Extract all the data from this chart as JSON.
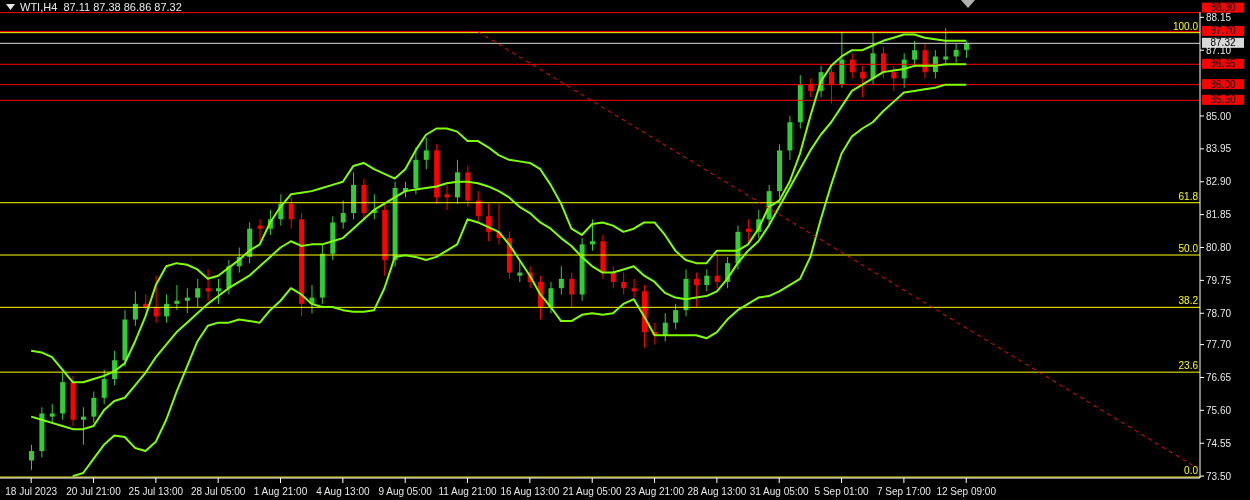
{
  "chart_data": {
    "type": "candlestick",
    "title": "WTI,H4  87.11 87.38 86.86 87.32",
    "categories": [
      "18 Jul 2023",
      null,
      null,
      null,
      null,
      null,
      "20 Jul 21:00",
      null,
      null,
      null,
      null,
      null,
      "25 Jul 13:00",
      null,
      null,
      null,
      null,
      null,
      "28 Jul 05:00",
      null,
      null,
      null,
      null,
      null,
      "1 Aug 21:00",
      null,
      null,
      null,
      null,
      null,
      "4 Aug 13:00",
      null,
      null,
      null,
      null,
      null,
      "9 Aug 05:00",
      null,
      null,
      null,
      null,
      null,
      "11 Aug 21:00",
      null,
      null,
      null,
      null,
      null,
      "16 Aug 13:00",
      null,
      null,
      null,
      null,
      null,
      "21 Aug 05:00",
      null,
      null,
      null,
      null,
      null,
      "23 Aug 21:00",
      null,
      null,
      null,
      null,
      null,
      "28 Aug 13:00",
      null,
      null,
      null,
      null,
      null,
      "31 Aug 05:00",
      null,
      null,
      null,
      null,
      null,
      "5 Sep 01:00",
      null,
      null,
      null,
      null,
      null,
      "7 Sep 17:00",
      null,
      null,
      null,
      null,
      null,
      "12 Sep 09:00",
      null,
      null,
      null,
      null,
      null,
      null,
      null,
      null,
      null,
      null,
      null,
      null,
      null,
      null,
      null,
      null,
      null,
      null,
      null,
      null,
      null,
      null
    ],
    "ohlc": [
      [
        74.0,
        74.5,
        73.7,
        74.3
      ],
      [
        74.3,
        75.7,
        74.1,
        75.5
      ],
      [
        75.4,
        75.8,
        75.2,
        75.5
      ],
      [
        75.5,
        76.8,
        75.3,
        76.5
      ],
      [
        76.5,
        76.7,
        75.1,
        75.3
      ],
      [
        75.3,
        75.7,
        74.5,
        75.4
      ],
      [
        75.4,
        76.2,
        75.2,
        76.0
      ],
      [
        76.0,
        76.9,
        75.8,
        76.6
      ],
      [
        76.6,
        77.5,
        76.4,
        77.2
      ],
      [
        77.2,
        78.8,
        77.0,
        78.5
      ],
      [
        78.5,
        79.4,
        78.3,
        79.0
      ],
      [
        79.0,
        79.3,
        78.8,
        78.9
      ],
      [
        78.9,
        79.9,
        78.4,
        78.6
      ],
      [
        78.6,
        79.3,
        78.4,
        79.0
      ],
      [
        79.0,
        79.6,
        78.8,
        79.1
      ],
      [
        79.1,
        79.5,
        78.7,
        79.2
      ],
      [
        79.2,
        79.8,
        78.9,
        79.5
      ],
      [
        79.5,
        80.1,
        79.1,
        79.4
      ],
      [
        79.4,
        79.8,
        79.0,
        79.5
      ],
      [
        79.5,
        80.4,
        79.3,
        80.2
      ],
      [
        80.2,
        80.8,
        80.0,
        80.5
      ],
      [
        80.5,
        81.6,
        80.3,
        81.4
      ],
      [
        81.5,
        81.7,
        81.0,
        81.4
      ],
      [
        81.4,
        82.0,
        81.2,
        81.7
      ],
      [
        81.7,
        82.5,
        81.5,
        82.2
      ],
      [
        82.2,
        82.4,
        81.4,
        81.7
      ],
      [
        81.7,
        81.9,
        78.6,
        79.0
      ],
      [
        79.0,
        79.6,
        78.7,
        79.2
      ],
      [
        79.2,
        80.9,
        79.0,
        80.6
      ],
      [
        80.6,
        81.8,
        80.4,
        81.6
      ],
      [
        81.6,
        82.3,
        81.4,
        81.9
      ],
      [
        81.9,
        83.2,
        81.7,
        82.8
      ],
      [
        82.8,
        83.0,
        81.7,
        81.9
      ],
      [
        81.9,
        82.5,
        81.7,
        82.0
      ],
      [
        82.0,
        82.2,
        79.9,
        80.4
      ],
      [
        80.4,
        82.9,
        80.2,
        82.7
      ],
      [
        82.6,
        82.9,
        82.4,
        82.7
      ],
      [
        82.7,
        84.0,
        82.5,
        83.6
      ],
      [
        83.6,
        84.3,
        83.3,
        83.9
      ],
      [
        83.9,
        84.1,
        82.2,
        82.4
      ],
      [
        82.5,
        82.8,
        82.0,
        82.4
      ],
      [
        82.4,
        83.6,
        82.2,
        83.2
      ],
      [
        83.2,
        83.4,
        82.1,
        82.3
      ],
      [
        82.3,
        82.6,
        81.6,
        81.8
      ],
      [
        81.8,
        82.2,
        81.0,
        81.3
      ],
      [
        81.3,
        82.2,
        80.9,
        81.1
      ],
      [
        81.1,
        81.3,
        79.8,
        80.0
      ],
      [
        79.9,
        80.4,
        79.7,
        80.0
      ],
      [
        80.0,
        80.2,
        79.5,
        79.7
      ],
      [
        79.7,
        79.9,
        78.5,
        78.9
      ],
      [
        78.9,
        79.7,
        78.7,
        79.5
      ],
      [
        79.5,
        80.2,
        79.3,
        79.8
      ],
      [
        79.8,
        80.0,
        78.9,
        79.3
      ],
      [
        79.3,
        81.1,
        79.1,
        80.9
      ],
      [
        80.9,
        81.7,
        80.7,
        81.0
      ],
      [
        81.0,
        81.2,
        79.8,
        80.0
      ],
      [
        80.0,
        80.2,
        79.5,
        79.7
      ],
      [
        79.7,
        80.0,
        79.3,
        79.5
      ],
      [
        79.5,
        79.8,
        79.2,
        79.4
      ],
      [
        79.4,
        79.6,
        77.6,
        78.1
      ],
      [
        78.1,
        78.4,
        77.7,
        78.0
      ],
      [
        78.0,
        78.7,
        77.8,
        78.4
      ],
      [
        78.4,
        79.0,
        78.2,
        78.8
      ],
      [
        78.8,
        80.1,
        78.6,
        79.8
      ],
      [
        79.8,
        80.0,
        78.9,
        79.6
      ],
      [
        79.6,
        80.1,
        79.4,
        79.9
      ],
      [
        79.9,
        80.6,
        79.5,
        79.7
      ],
      [
        79.7,
        80.5,
        79.5,
        80.3
      ],
      [
        80.3,
        81.5,
        80.1,
        81.3
      ],
      [
        81.4,
        81.7,
        80.9,
        81.3
      ],
      [
        81.3,
        82.0,
        81.1,
        81.7
      ],
      [
        81.7,
        82.8,
        81.5,
        82.6
      ],
      [
        82.6,
        84.1,
        82.4,
        83.9
      ],
      [
        83.9,
        85.0,
        83.6,
        84.8
      ],
      [
        84.8,
        86.3,
        84.6,
        86.0
      ],
      [
        86.0,
        86.2,
        85.6,
        85.8
      ],
      [
        85.8,
        86.6,
        85.6,
        86.4
      ],
      [
        86.4,
        86.5,
        85.4,
        86.0
      ],
      [
        86.0,
        87.7,
        85.9,
        86.8
      ],
      [
        86.8,
        87.0,
        86.2,
        86.4
      ],
      [
        86.4,
        86.6,
        85.6,
        86.2
      ],
      [
        86.2,
        87.7,
        86.0,
        87.0
      ],
      [
        87.0,
        87.2,
        86.2,
        86.4
      ],
      [
        86.4,
        86.6,
        85.8,
        86.2
      ],
      [
        86.2,
        87.0,
        85.9,
        86.8
      ],
      [
        86.8,
        87.4,
        86.6,
        87.1
      ],
      [
        87.1,
        87.3,
        86.2,
        86.4
      ],
      [
        86.4,
        87.1,
        86.2,
        86.9
      ],
      [
        86.8,
        87.8,
        86.6,
        86.9
      ],
      [
        86.9,
        87.3,
        86.7,
        87.11
      ],
      [
        87.11,
        87.38,
        86.86,
        87.32
      ],
      null,
      null,
      null,
      null,
      null,
      null,
      null,
      null,
      null,
      null,
      null,
      null,
      null,
      null,
      null,
      null,
      null,
      null,
      null,
      null,
      null,
      null
    ],
    "colors": [
      "#32cd32",
      "#32cd32",
      "#32cd32",
      "#32cd32",
      "#ff0000",
      "#32cd32",
      "#32cd32",
      "#32cd32",
      "#32cd32",
      "#32cd32",
      "#32cd32",
      "#ff0000",
      "#ff0000",
      "#32cd32",
      "#32cd32",
      "#32cd32",
      "#32cd32",
      "#ff0000",
      "#32cd32",
      "#32cd32",
      "#32cd32",
      "#32cd32",
      "#ff0000",
      "#32cd32",
      "#32cd32",
      "#ff0000",
      "#ff0000",
      "#32cd32",
      "#32cd32",
      "#32cd32",
      "#32cd32",
      "#32cd32",
      "#ff0000",
      "#32cd32",
      "#ff0000",
      "#32cd32",
      "#32cd32",
      "#32cd32",
      "#32cd32",
      "#ff0000",
      "#ff0000",
      "#32cd32",
      "#ff0000",
      "#ff0000",
      "#ff0000",
      "#ff0000",
      "#ff0000",
      "#32cd32",
      "#ff0000",
      "#ff0000",
      "#32cd32",
      "#32cd32",
      "#ff0000",
      "#32cd32",
      "#32cd32",
      "#ff0000",
      "#ff0000",
      "#ff0000",
      "#ff0000",
      "#ff0000",
      "#ff0000",
      "#32cd32",
      "#32cd32",
      "#32cd32",
      "#ff0000",
      "#32cd32",
      "#ff0000",
      "#32cd32",
      "#32cd32",
      "#ff0000",
      "#32cd32",
      "#32cd32",
      "#32cd32",
      "#32cd32",
      "#32cd32",
      "#ff0000",
      "#32cd32",
      "#ff0000",
      "#32cd32",
      "#ff0000",
      "#ff0000",
      "#32cd32",
      "#ff0000",
      "#ff0000",
      "#32cd32",
      "#32cd32",
      "#ff0000",
      "#32cd32",
      "#32cd32",
      "#32cd32",
      "#32cd32",
      null,
      null,
      null,
      null,
      null,
      null,
      null,
      null,
      null,
      null,
      null,
      null,
      null,
      null,
      null,
      null,
      null,
      null,
      null,
      null,
      null,
      null
    ],
    "series": [
      {
        "type": "line",
        "color": "#7fff00",
        "values": [
          77.5,
          77.45,
          77.3,
          76.9,
          76.5,
          76.5,
          76.6,
          76.7,
          76.85,
          77.1,
          77.8,
          78.6,
          79.6,
          80.2,
          80.3,
          80.25,
          80.1,
          79.8,
          79.9,
          80.15,
          80.4,
          80.7,
          80.9,
          81.6,
          82.1,
          82.5,
          82.55,
          82.6,
          82.7,
          82.8,
          82.9,
          83.4,
          83.5,
          83.3,
          83.15,
          83.0,
          83.3,
          83.9,
          84.4,
          84.6,
          84.6,
          84.5,
          84.2,
          84.2,
          84.0,
          83.75,
          83.6,
          83.55,
          83.5,
          83.3,
          82.8,
          82.2,
          81.4,
          81.2,
          81.55,
          81.6,
          81.5,
          81.3,
          81.4,
          81.6,
          81.6,
          81.2,
          80.7,
          80.4,
          80.3,
          80.3,
          80.7,
          80.7,
          80.7,
          80.9,
          81.4,
          82.1,
          82.3,
          82.9,
          83.8,
          85.0,
          86.1,
          86.6,
          86.9,
          87.1,
          87.1,
          87.25,
          87.4,
          87.5,
          87.6,
          87.6,
          87.5,
          87.45,
          87.4,
          87.4,
          87.4,
          null,
          null,
          null,
          null,
          null,
          null,
          null,
          null,
          null,
          null,
          null,
          null,
          null,
          null,
          null,
          null,
          null,
          null,
          null,
          null,
          null,
          null
        ]
      },
      {
        "type": "line",
        "color": "#7fff00",
        "values": [
          75.4,
          75.3,
          75.2,
          75.1,
          75.0,
          75.0,
          75.1,
          75.6,
          75.9,
          76.0,
          76.4,
          76.8,
          77.3,
          77.7,
          78.1,
          78.4,
          78.7,
          79.0,
          79.25,
          79.5,
          79.7,
          79.9,
          80.2,
          80.5,
          80.8,
          81.0,
          80.85,
          80.9,
          80.9,
          81.0,
          81.1,
          81.4,
          81.7,
          82.0,
          82.2,
          82.4,
          82.6,
          82.65,
          82.7,
          82.75,
          82.85,
          82.9,
          82.9,
          82.85,
          82.75,
          82.6,
          82.4,
          82.1,
          81.9,
          81.6,
          81.4,
          81.1,
          80.85,
          80.5,
          80.2,
          80.0,
          80.0,
          80.1,
          80.2,
          79.9,
          79.7,
          79.35,
          79.2,
          79.15,
          79.2,
          79.25,
          79.4,
          79.8,
          80.3,
          80.7,
          81.0,
          81.5,
          82.1,
          82.7,
          83.3,
          83.9,
          84.4,
          84.8,
          85.3,
          85.8,
          86.0,
          86.2,
          86.4,
          86.45,
          86.5,
          86.6,
          86.6,
          86.6,
          86.65,
          86.65,
          86.65,
          null,
          null,
          null,
          null,
          null,
          null,
          null,
          null,
          null,
          null,
          null,
          null,
          null,
          null,
          null,
          null,
          null,
          null,
          null,
          null,
          null,
          null
        ]
      },
      {
        "type": "line",
        "color": "#7fff00",
        "values": [
          null,
          null,
          null,
          null,
          73.5,
          73.6,
          74.05,
          74.5,
          74.8,
          74.75,
          74.4,
          74.3,
          74.6,
          75.3,
          76.2,
          77.0,
          77.8,
          78.3,
          78.4,
          78.4,
          78.5,
          78.45,
          78.4,
          78.8,
          79.1,
          79.5,
          79.3,
          79.0,
          78.9,
          78.9,
          78.8,
          78.75,
          78.75,
          78.8,
          79.5,
          80.5,
          80.55,
          80.5,
          80.4,
          80.5,
          80.7,
          80.9,
          81.7,
          81.6,
          81.45,
          81.3,
          80.9,
          80.4,
          79.9,
          79.3,
          78.9,
          78.45,
          78.45,
          78.65,
          78.7,
          78.65,
          78.7,
          79.0,
          79.15,
          78.6,
          78.0,
          78.0,
          78.0,
          78.0,
          78.0,
          77.9,
          78.1,
          78.5,
          78.8,
          79.0,
          79.2,
          79.25,
          79.4,
          79.6,
          79.8,
          80.5,
          81.7,
          82.8,
          83.8,
          84.35,
          84.6,
          84.8,
          85.15,
          85.45,
          85.75,
          85.8,
          85.85,
          85.9,
          86.0,
          86.0,
          86.0,
          null,
          null,
          null,
          null,
          null,
          null,
          null,
          null,
          null,
          null,
          null,
          null,
          null,
          null,
          null,
          null,
          null,
          null,
          null,
          null,
          null,
          null
        ]
      },
      {
        "type": "line",
        "color": "#ff0000",
        "line_style": "dashed",
        "values": [
          null,
          null,
          null,
          null,
          null,
          null,
          null,
          null,
          null,
          null,
          null,
          null,
          null,
          null,
          null,
          null,
          null,
          null,
          null,
          null,
          null,
          null,
          null,
          null,
          null,
          null,
          null,
          null,
          null,
          null,
          null,
          null,
          null,
          null,
          null,
          null,
          null,
          null,
          null,
          null,
          null,
          null,
          null,
          87.69,
          null,
          null,
          null,
          null,
          null,
          null,
          null,
          null,
          null,
          null,
          null,
          null,
          null,
          null,
          null,
          null,
          null,
          null,
          null,
          null,
          null,
          null,
          null,
          null,
          null,
          null,
          null,
          null,
          null,
          null,
          null,
          null,
          null,
          null,
          null,
          null,
          null,
          null,
          null,
          null,
          null,
          null,
          null,
          null,
          null,
          null,
          null,
          null,
          null,
          null,
          null,
          null,
          null,
          null,
          null,
          null,
          null,
          null,
          null,
          null,
          null,
          null,
          null,
          null,
          null,
          null,
          null,
          null,
          73.8
        ]
      }
    ],
    "ylim": [
      73.44,
      88.32
    ],
    "yticks": [
      {
        "value": 73.5,
        "label": "73.50"
      },
      74.55,
      {
        "value": 75.6,
        "label": "75.60"
      },
      76.65,
      {
        "value": 77.7,
        "label": "77.70"
      },
      {
        "value": 78.7,
        "label": "78.70"
      },
      79.75,
      {
        "value": 80.8,
        "label": "80.80"
      },
      81.85,
      {
        "value": 82.9,
        "label": "82.90"
      },
      83.95,
      {
        "value": 85.0,
        "label": "85.00"
      },
      {
        "value": 87.1,
        "label": "87.10"
      },
      88.15
    ],
    "ref_lines": [
      {
        "axis": "y",
        "value": 88.3,
        "label": "88.30",
        "color": "#ff0000"
      },
      {
        "axis": "y",
        "value": 87.7,
        "label": "87.70",
        "color": "#ff0000"
      },
      {
        "axis": "y",
        "value": 86.65,
        "label": "86.65",
        "color": "#ff0000"
      },
      {
        "axis": "y",
        "value": 86.0,
        "label": "86.00",
        "color": "#ff0000"
      },
      {
        "axis": "y",
        "value": 85.5,
        "label": "85.50",
        "color": "#ff0000"
      },
      {
        "axis": "y",
        "value": 87.32,
        "label": "87.32",
        "color": "#d8d8d8"
      },
      {
        "axis": "y",
        "value": 87.66,
        "color": "#ffff00"
      },
      {
        "axis": "y",
        "value": 82.23,
        "color": "#ffff00"
      },
      {
        "axis": "y",
        "value": 80.56,
        "color": "#ffff00"
      },
      {
        "axis": "y",
        "value": 78.89,
        "color": "#ffff00"
      },
      {
        "axis": "y",
        "value": 76.82,
        "color": "#ffff00"
      },
      {
        "axis": "y",
        "value": 73.47,
        "color": "#ffff00"
      }
    ],
    "annotations": [
      {
        "text": "100.0",
        "y": 87.66
      },
      {
        "text": "61.8",
        "y": 82.23
      },
      {
        "text": "50.0",
        "y": 80.56
      },
      {
        "text": "38.2",
        "y": 78.89
      },
      {
        "text": "23.6",
        "y": 76.82
      },
      {
        "text": "0.0",
        "y": 73.47
      }
    ]
  }
}
